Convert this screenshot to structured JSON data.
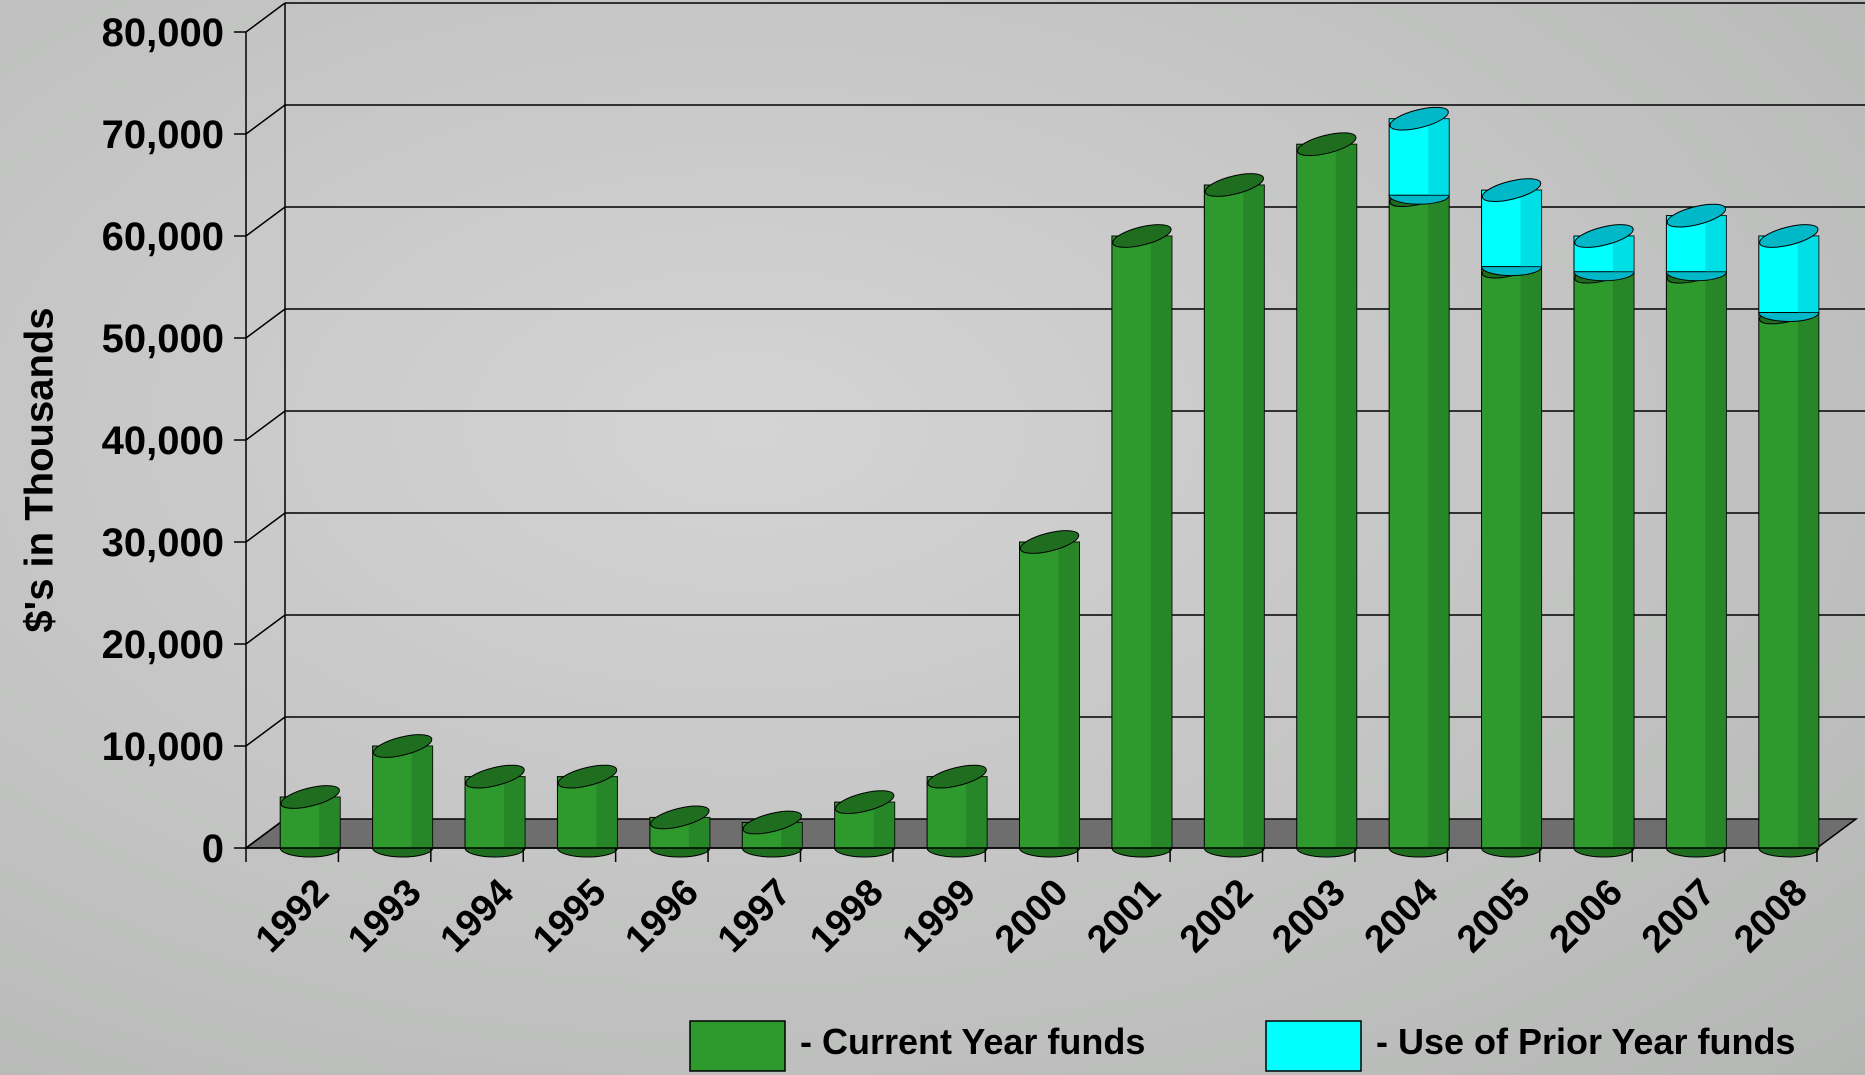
{
  "chart_data": {
    "type": "bar3d_stacked",
    "y_label": "$'s in Thousands",
    "categories": [
      "1992",
      "1993",
      "1994",
      "1995",
      "1996",
      "1997",
      "1998",
      "1999",
      "2000",
      "2001",
      "2002",
      "2003",
      "2004",
      "2005",
      "2006",
      "2007",
      "2008"
    ],
    "series": [
      {
        "name": "- Current Year funds",
        "color": "#2e9a2e",
        "values": [
          5000,
          10000,
          7000,
          7000,
          3000,
          2500,
          4500,
          7000,
          30000,
          60000,
          65000,
          69000,
          64000,
          57000,
          56500,
          56500,
          52500
        ]
      },
      {
        "name": "- Use of Prior Year funds",
        "color": "#00ffff",
        "values": [
          null,
          null,
          null,
          null,
          null,
          null,
          null,
          null,
          null,
          null,
          null,
          null,
          7500,
          7500,
          3500,
          5500,
          7500
        ]
      }
    ],
    "ylim": [
      0,
      80000
    ],
    "yticks": [
      0,
      {
        "value": 10000,
        "label": "10,000"
      },
      {
        "value": 20000,
        "label": "20,000"
      },
      {
        "value": 30000,
        "label": "30,000"
      },
      {
        "value": 40000,
        "label": "40,000"
      },
      {
        "value": 50000,
        "label": "50,000"
      },
      {
        "value": 60000,
        "label": "60,000"
      },
      {
        "value": 70000,
        "label": "70,000"
      },
      {
        "value": 80000,
        "label": "80,000"
      }
    ],
    "grid": true
  }
}
